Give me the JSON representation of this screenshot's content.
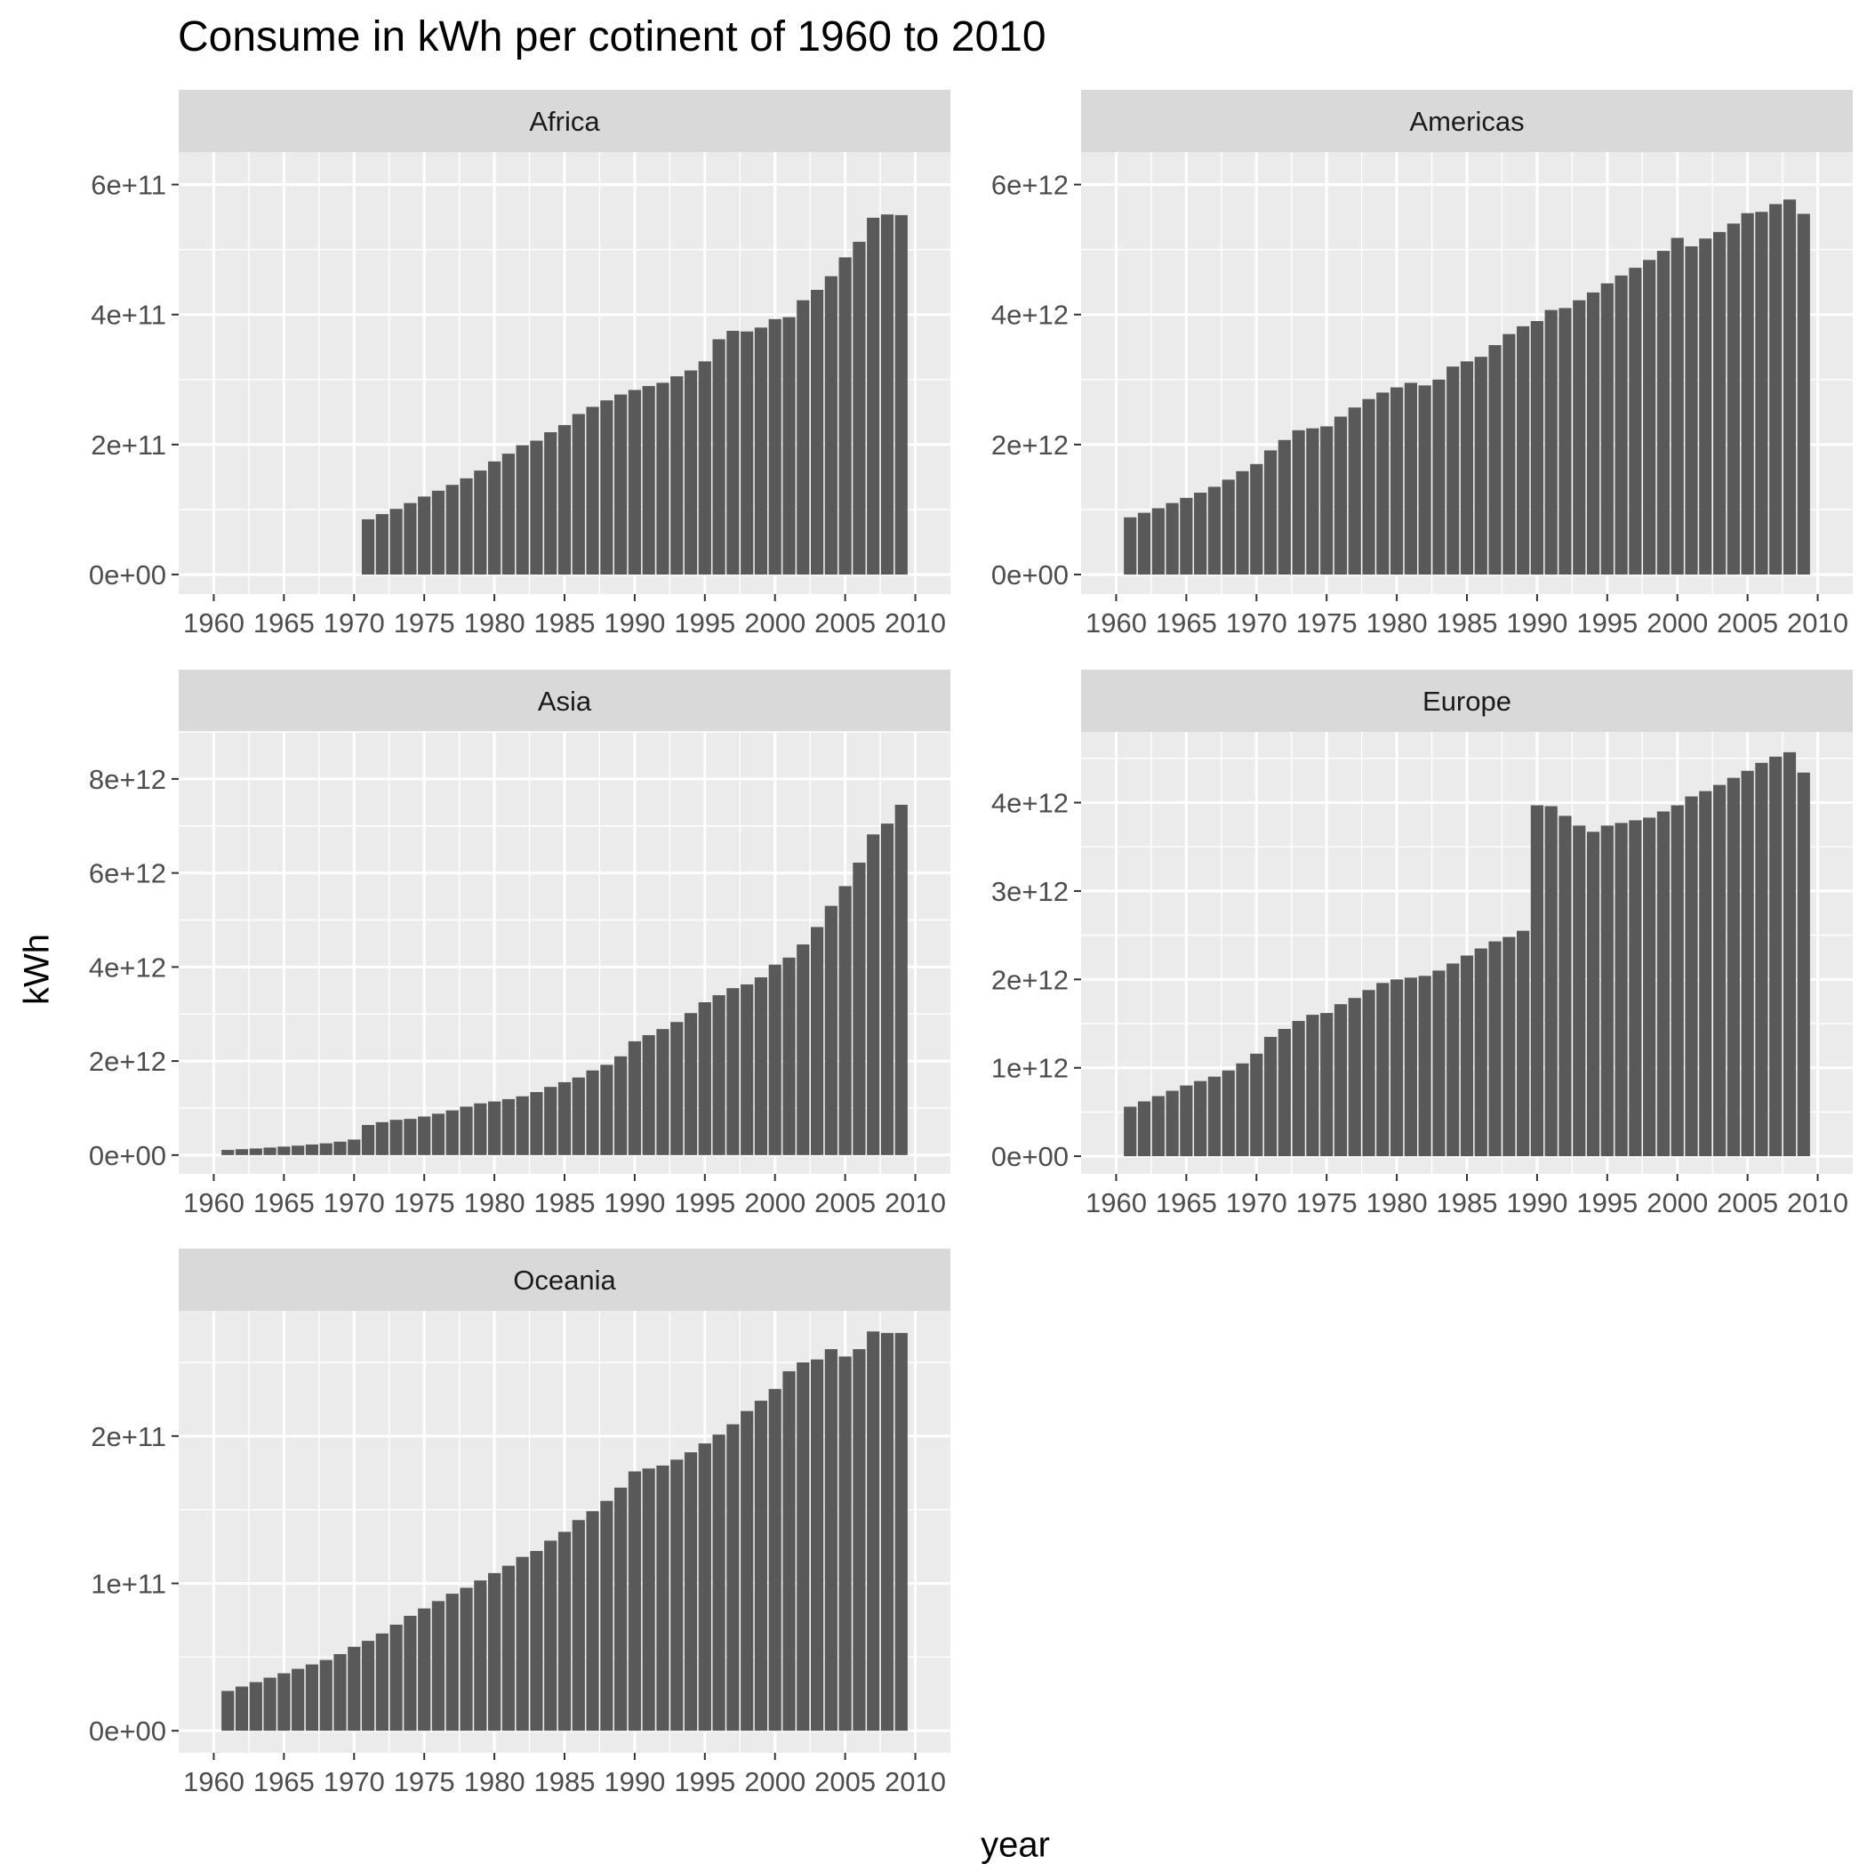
{
  "title": "Consume in kWh per cotinent of 1960 to 2010",
  "xlabel": "year",
  "ylabel": "kWh",
  "colors": {
    "bar": "#595959",
    "panel_bg": "#ebebeb",
    "strip_bg": "#d9d9d9",
    "grid": "#ffffff",
    "tick_text": "#4d4d4d",
    "strip_text": "#1a1a1a"
  },
  "chart_data": {
    "type": "bar",
    "layout": "facet_wrap",
    "x_ticks": [
      "1960",
      "1965",
      "1970",
      "1975",
      "1980",
      "1985",
      "1990",
      "1995",
      "2000",
      "2005",
      "2010"
    ],
    "xlim": [
      1957.5,
      2012.5
    ],
    "grid": true,
    "legend": "none",
    "panels": [
      {
        "name": "Africa",
        "ylim": [
          -30000000000.0,
          650000000000.0
        ],
        "y_ticks": [
          {
            "value": 0,
            "label": "0e+00"
          },
          {
            "value": 200000000000.0,
            "label": "2e+11"
          },
          {
            "value": 400000000000.0,
            "label": "4e+11"
          },
          {
            "value": 600000000000.0,
            "label": "6e+11"
          }
        ],
        "years": [
          1971,
          1972,
          1973,
          1974,
          1975,
          1976,
          1977,
          1978,
          1979,
          1980,
          1981,
          1982,
          1983,
          1984,
          1985,
          1986,
          1987,
          1988,
          1989,
          1990,
          1991,
          1992,
          1993,
          1994,
          1995,
          1996,
          1997,
          1998,
          1999,
          2000,
          2001,
          2002,
          2003,
          2004,
          2005,
          2006,
          2007,
          2008,
          2009
        ],
        "values": [
          85000000000.0,
          93000000000.0,
          101000000000.0,
          110000000000.0,
          120000000000.0,
          129000000000.0,
          138000000000.0,
          148000000000.0,
          160000000000.0,
          174000000000.0,
          186000000000.0,
          199000000000.0,
          206000000000.0,
          219000000000.0,
          230000000000.0,
          247000000000.0,
          258000000000.0,
          268000000000.0,
          277000000000.0,
          284000000000.0,
          290000000000.0,
          295000000000.0,
          305000000000.0,
          314000000000.0,
          328000000000.0,
          362000000000.0,
          375000000000.0,
          374000000000.0,
          380000000000.0,
          393000000000.0,
          396000000000.0,
          422000000000.0,
          438000000000.0,
          459000000000.0,
          488000000000.0,
          512000000000.0,
          549000000000.0,
          554000000000.0,
          553000000000.0
        ]
      },
      {
        "name": "Americas",
        "ylim": [
          -300000000000.0,
          6500000000000.0
        ],
        "y_ticks": [
          {
            "value": 0,
            "label": "0e+00"
          },
          {
            "value": 2000000000000.0,
            "label": "2e+12"
          },
          {
            "value": 4000000000000.0,
            "label": "4e+12"
          },
          {
            "value": 6000000000000.0,
            "label": "6e+12"
          }
        ],
        "years": [
          1961,
          1962,
          1963,
          1964,
          1965,
          1966,
          1967,
          1968,
          1969,
          1970,
          1971,
          1972,
          1973,
          1974,
          1975,
          1976,
          1977,
          1978,
          1979,
          1980,
          1981,
          1982,
          1983,
          1984,
          1985,
          1986,
          1987,
          1988,
          1989,
          1990,
          1991,
          1992,
          1993,
          1994,
          1995,
          1996,
          1997,
          1998,
          1999,
          2000,
          2001,
          2002,
          2003,
          2004,
          2005,
          2006,
          2007,
          2008,
          2009
        ],
        "values": [
          880000000000.0,
          950000000000.0,
          1020000000000.0,
          1100000000000.0,
          1180000000000.0,
          1260000000000.0,
          1350000000000.0,
          1460000000000.0,
          1590000000000.0,
          1700000000000.0,
          1910000000000.0,
          2070000000000.0,
          2220000000000.0,
          2250000000000.0,
          2280000000000.0,
          2430000000000.0,
          2570000000000.0,
          2700000000000.0,
          2800000000000.0,
          2880000000000.0,
          2950000000000.0,
          2910000000000.0,
          3000000000000.0,
          3200000000000.0,
          3280000000000.0,
          3350000000000.0,
          3530000000000.0,
          3700000000000.0,
          3820000000000.0,
          3900000000000.0,
          4070000000000.0,
          4100000000000.0,
          4220000000000.0,
          4340000000000.0,
          4480000000000.0,
          4600000000000.0,
          4720000000000.0,
          4840000000000.0,
          4980000000000.0,
          5180000000000.0,
          5050000000000.0,
          5170000000000.0,
          5270000000000.0,
          5400000000000.0,
          5560000000000.0,
          5580000000000.0,
          5700000000000.0,
          5770000000000.0,
          5550000000000.0
        ]
      },
      {
        "name": "Asia",
        "ylim": [
          -400000000000.0,
          9000000000000.0
        ],
        "y_ticks": [
          {
            "value": 0,
            "label": "0e+00"
          },
          {
            "value": 2000000000000.0,
            "label": "2e+12"
          },
          {
            "value": 4000000000000.0,
            "label": "4e+12"
          },
          {
            "value": 6000000000000.0,
            "label": "6e+12"
          },
          {
            "value": 8000000000000.0,
            "label": "8e+12"
          }
        ],
        "years": [
          1961,
          1962,
          1963,
          1964,
          1965,
          1966,
          1967,
          1968,
          1969,
          1970,
          1971,
          1972,
          1973,
          1974,
          1975,
          1976,
          1977,
          1978,
          1979,
          1980,
          1981,
          1982,
          1983,
          1984,
          1985,
          1986,
          1987,
          1988,
          1989,
          1990,
          1991,
          1992,
          1993,
          1994,
          1995,
          1996,
          1997,
          1998,
          1999,
          2000,
          2001,
          2002,
          2003,
          2004,
          2005,
          2006,
          2007,
          2008,
          2009
        ],
        "values": [
          110000000000.0,
          125000000000.0,
          140000000000.0,
          160000000000.0,
          180000000000.0,
          200000000000.0,
          225000000000.0,
          250000000000.0,
          285000000000.0,
          330000000000.0,
          640000000000.0,
          700000000000.0,
          750000000000.0,
          770000000000.0,
          820000000000.0,
          880000000000.0,
          950000000000.0,
          1030000000000.0,
          1100000000000.0,
          1140000000000.0,
          1190000000000.0,
          1250000000000.0,
          1340000000000.0,
          1450000000000.0,
          1550000000000.0,
          1650000000000.0,
          1800000000000.0,
          1920000000000.0,
          2100000000000.0,
          2420000000000.0,
          2550000000000.0,
          2680000000000.0,
          2830000000000.0,
          3020000000000.0,
          3250000000000.0,
          3400000000000.0,
          3550000000000.0,
          3630000000000.0,
          3780000000000.0,
          4050000000000.0,
          4200000000000.0,
          4480000000000.0,
          4850000000000.0,
          5300000000000.0,
          5720000000000.0,
          6220000000000.0,
          6820000000000.0,
          7050000000000.0,
          7450000000000.0
        ]
      },
      {
        "name": "Europe",
        "ylim": [
          -200000000000.0,
          4800000000000.0
        ],
        "y_ticks": [
          {
            "value": 0,
            "label": "0e+00"
          },
          {
            "value": 1000000000000.0,
            "label": "1e+12"
          },
          {
            "value": 2000000000000.0,
            "label": "2e+12"
          },
          {
            "value": 3000000000000.0,
            "label": "3e+12"
          },
          {
            "value": 4000000000000.0,
            "label": "4e+12"
          }
        ],
        "years": [
          1961,
          1962,
          1963,
          1964,
          1965,
          1966,
          1967,
          1968,
          1969,
          1970,
          1971,
          1972,
          1973,
          1974,
          1975,
          1976,
          1977,
          1978,
          1979,
          1980,
          1981,
          1982,
          1983,
          1984,
          1985,
          1986,
          1987,
          1988,
          1989,
          1990,
          1991,
          1992,
          1993,
          1994,
          1995,
          1996,
          1997,
          1998,
          1999,
          2000,
          2001,
          2002,
          2003,
          2004,
          2005,
          2006,
          2007,
          2008,
          2009
        ],
        "values": [
          560000000000.0,
          620000000000.0,
          680000000000.0,
          740000000000.0,
          800000000000.0,
          850000000000.0,
          900000000000.0,
          970000000000.0,
          1050000000000.0,
          1160000000000.0,
          1350000000000.0,
          1440000000000.0,
          1530000000000.0,
          1600000000000.0,
          1620000000000.0,
          1720000000000.0,
          1790000000000.0,
          1880000000000.0,
          1960000000000.0,
          2000000000000.0,
          2020000000000.0,
          2040000000000.0,
          2100000000000.0,
          2180000000000.0,
          2270000000000.0,
          2350000000000.0,
          2430000000000.0,
          2480000000000.0,
          2550000000000.0,
          3970000000000.0,
          3960000000000.0,
          3850000000000.0,
          3740000000000.0,
          3670000000000.0,
          3740000000000.0,
          3770000000000.0,
          3800000000000.0,
          3830000000000.0,
          3900000000000.0,
          3970000000000.0,
          4070000000000.0,
          4130000000000.0,
          4200000000000.0,
          4280000000000.0,
          4360000000000.0,
          4450000000000.0,
          4520000000000.0,
          4570000000000.0,
          4340000000000.0
        ]
      },
      {
        "name": "Oceania",
        "ylim": [
          -15000000000.0,
          285000000000.0
        ],
        "y_ticks": [
          {
            "value": 0,
            "label": "0e+00"
          },
          {
            "value": 100000000000.0,
            "label": "1e+11"
          },
          {
            "value": 200000000000.0,
            "label": "2e+11"
          }
        ],
        "years": [
          1961,
          1962,
          1963,
          1964,
          1965,
          1966,
          1967,
          1968,
          1969,
          1970,
          1971,
          1972,
          1973,
          1974,
          1975,
          1976,
          1977,
          1978,
          1979,
          1980,
          1981,
          1982,
          1983,
          1984,
          1985,
          1986,
          1987,
          1988,
          1989,
          1990,
          1991,
          1992,
          1993,
          1994,
          1995,
          1996,
          1997,
          1998,
          1999,
          2000,
          2001,
          2002,
          2003,
          2004,
          2005,
          2006,
          2007,
          2008,
          2009
        ],
        "values": [
          27000000000.0,
          30000000000.0,
          33000000000.0,
          36000000000.0,
          39000000000.0,
          42000000000.0,
          45000000000.0,
          48000000000.0,
          52000000000.0,
          57000000000.0,
          61000000000.0,
          66000000000.0,
          72000000000.0,
          78000000000.0,
          83000000000.0,
          88000000000.0,
          93000000000.0,
          97000000000.0,
          102000000000.0,
          107000000000.0,
          112000000000.0,
          118000000000.0,
          122000000000.0,
          129000000000.0,
          135000000000.0,
          143000000000.0,
          149000000000.0,
          156000000000.0,
          165000000000.0,
          176000000000.0,
          178000000000.0,
          180000000000.0,
          184000000000.0,
          189000000000.0,
          195000000000.0,
          201000000000.0,
          208000000000.0,
          217000000000.0,
          224000000000.0,
          232000000000.0,
          244000000000.0,
          250000000000.0,
          252000000000.0,
          259000000000.0,
          254000000000.0,
          259000000000.0,
          271000000000.0,
          270000000000.0,
          270000000000.0
        ]
      }
    ]
  }
}
